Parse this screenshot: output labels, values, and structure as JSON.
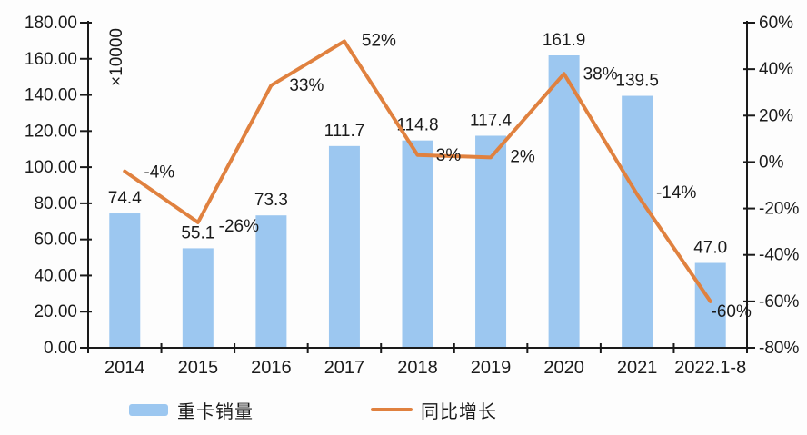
{
  "chart_data": {
    "type": "combo",
    "categories": [
      "2014",
      "2015",
      "2016",
      "2017",
      "2018",
      "2019",
      "2020",
      "2021",
      "2022.1-8"
    ],
    "series": [
      {
        "name": "重卡销量",
        "type": "bar",
        "axis": "left",
        "values": [
          74.4,
          55.1,
          73.3,
          111.7,
          114.8,
          117.4,
          161.9,
          139.5,
          47.0
        ],
        "labels": [
          "74.4",
          "55.1",
          "73.3",
          "111.7",
          "114.8",
          "117.4",
          "161.9",
          "139.5",
          "47.0"
        ],
        "color": "#9CC7F0"
      },
      {
        "name": "同比增长",
        "type": "line",
        "axis": "right",
        "values": [
          -4,
          -26,
          33,
          52,
          3,
          2,
          38,
          -14,
          -60
        ],
        "labels": [
          "-4%",
          "-26%",
          "33%",
          "52%",
          "3%",
          "2%",
          "38%",
          "-14%",
          "-60%"
        ],
        "color": "#E0813F"
      }
    ],
    "left_axis": {
      "min": 0,
      "max": 180,
      "step": 20,
      "tick_labels": [
        "0.00",
        "20.00",
        "40.00",
        "60.00",
        "80.00",
        "100.00",
        "120.00",
        "140.00",
        "160.00",
        "180.00"
      ],
      "unit_label": "×10000"
    },
    "right_axis": {
      "min": -80,
      "max": 60,
      "step": 20,
      "tick_labels": [
        "-80%",
        "-60%",
        "-40%",
        "-20%",
        "0%",
        "20%",
        "40%",
        "60%"
      ]
    },
    "legend_position": "bottom",
    "grid": false,
    "title": "",
    "xlabel": "",
    "ylabel": ""
  },
  "legend": {
    "bar_label": "重卡销量",
    "line_label": "同比增长"
  },
  "colors": {
    "bar": "#9CC7F0",
    "line": "#E0813F",
    "axis": "#1a1a1a",
    "text": "#1a1a1a",
    "background": "#fdfdfd"
  }
}
